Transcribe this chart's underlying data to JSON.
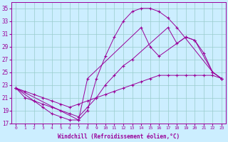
{
  "background_color": "#cceeff",
  "grid_color": "#99cccc",
  "line_color": "#990099",
  "xlim": [
    -0.5,
    23.5
  ],
  "ylim": [
    17,
    36
  ],
  "xticks": [
    0,
    1,
    2,
    3,
    4,
    5,
    6,
    7,
    8,
    9,
    10,
    11,
    12,
    13,
    14,
    15,
    16,
    17,
    18,
    19,
    20,
    21,
    22,
    23
  ],
  "yticks": [
    17,
    19,
    21,
    23,
    25,
    27,
    29,
    31,
    33,
    35
  ],
  "xlabel": "Windchill (Refroidissement éolien,°C)",
  "line1_x": [
    0,
    1,
    2,
    3,
    4,
    5,
    6,
    7,
    8,
    9,
    10,
    11,
    12,
    13,
    14,
    15,
    16,
    17,
    18,
    22,
    23
  ],
  "line1_y": [
    22.5,
    21.0,
    20.5,
    19.5,
    18.5,
    18.0,
    17.5,
    17.5,
    19.0,
    24.0,
    27.5,
    30.5,
    33.0,
    34.5,
    35.0,
    35.0,
    34.5,
    33.5,
    32.0,
    25.0,
    24.0
  ],
  "line2_x": [
    0,
    2,
    3,
    4,
    5,
    6,
    7,
    8,
    9,
    10,
    11,
    12,
    13,
    17,
    18,
    19,
    20,
    22,
    23
  ],
  "line2_y": [
    22.5,
    20.5,
    20.0,
    19.5,
    19.0,
    18.5,
    18.0,
    19.5,
    21.0,
    23.0,
    24.5,
    26.0,
    27.0,
    32.0,
    29.5,
    30.5,
    30.0,
    25.0,
    24.0
  ],
  "line3_x": [
    0,
    1,
    2,
    3,
    4,
    5,
    6,
    7,
    8,
    9,
    10,
    11,
    12,
    13,
    14,
    15,
    16,
    17,
    18,
    19,
    20,
    21,
    22,
    23
  ],
  "line3_y": [
    22.5,
    22.0,
    21.5,
    21.0,
    20.5,
    20.0,
    19.5,
    20.0,
    20.5,
    21.0,
    21.5,
    22.0,
    22.5,
    23.0,
    23.5,
    24.0,
    24.5,
    24.5,
    24.5,
    24.5,
    24.5,
    24.5,
    24.5,
    24.0
  ],
  "line4_x": [
    0,
    7,
    8,
    14,
    15,
    16,
    19,
    20,
    21,
    22,
    23
  ],
  "line4_y": [
    22.5,
    17.5,
    24.0,
    32.0,
    29.0,
    27.5,
    30.5,
    30.0,
    28.0,
    25.0,
    24.0
  ]
}
